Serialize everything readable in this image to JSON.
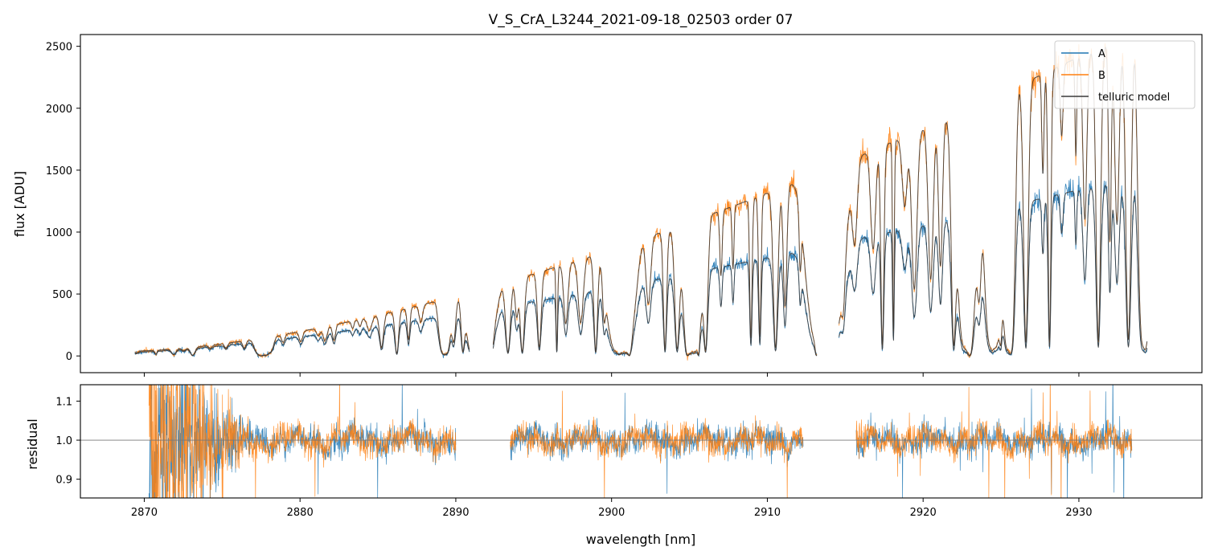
{
  "colors": {
    "A": "#1f77b4",
    "B": "#ff7f0e",
    "telluric": "#3a3a3a",
    "refline": "#777777"
  },
  "chart_data": [
    {
      "type": "line",
      "panel": "top",
      "title": "V_S_CrA_L3244_2021-09-18_02503  order 07",
      "xlabel": "",
      "ylabel": "flux [ADU]",
      "xlim": [
        2865.9,
        2937.9
      ],
      "ylim": [
        -135,
        2595
      ],
      "xticks": [
        2870,
        2880,
        2890,
        2900,
        2910,
        2920,
        2930
      ],
      "yticks": [
        0,
        500,
        1000,
        1500,
        2000,
        2500
      ],
      "ytick_labels": [
        "0",
        "500",
        "1000",
        "1500",
        "2000",
        "2500"
      ],
      "legend_position": "top-right",
      "series": [
        {
          "name": "A",
          "label": "A",
          "color_key": "A",
          "approx_continuum": "rises from ~30 ADU at 2870 nm to ~1400 ADU at 2930 nm",
          "segment_range": [
            [
              2869.4,
              2890.9
            ],
            [
              2892.4,
              2913.2
            ],
            [
              2914.6,
              2934.4
            ]
          ]
        },
        {
          "name": "B",
          "label": "B",
          "color_key": "B",
          "approx_continuum": "rises from ~40 ADU at 2870 nm to ~2550 ADU at 2933 nm",
          "segment_range": [
            [
              2869.4,
              2890.9
            ],
            [
              2892.4,
              2913.2
            ],
            [
              2914.6,
              2934.4
            ]
          ]
        },
        {
          "name": "telluric model",
          "label": "telluric model",
          "color_key": "telluric",
          "approx_continuum": "follows both A and B with deep absorption lines"
        }
      ]
    },
    {
      "type": "line",
      "panel": "bottom",
      "xlabel": "wavelength [nm]",
      "ylabel": "residual",
      "xlim": [
        2865.9,
        2937.9
      ],
      "ylim": [
        0.852,
        1.142
      ],
      "xticks": [
        2870,
        2880,
        2890,
        2900,
        2910,
        2920,
        2930
      ],
      "xtick_labels": [
        "2870",
        "2880",
        "2890",
        "2900",
        "2910",
        "2920",
        "2930"
      ],
      "yticks": [
        0.9,
        1.0,
        1.1
      ],
      "ytick_labels": [
        "0.9",
        "1.0",
        "1.1"
      ],
      "reference_line": 1.0,
      "series": [
        {
          "name": "A",
          "color_key": "A",
          "segment_range": [
            [
              2870.3,
              2890.0
            ],
            [
              2893.5,
              2912.3
            ],
            [
              2915.7,
              2933.4
            ]
          ]
        },
        {
          "name": "B",
          "color_key": "B",
          "segment_range": [
            [
              2870.3,
              2890.0
            ],
            [
              2893.5,
              2912.3
            ],
            [
              2915.7,
              2933.4
            ]
          ]
        }
      ]
    }
  ]
}
